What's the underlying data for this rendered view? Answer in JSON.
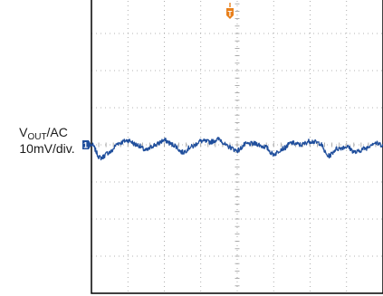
{
  "channel": {
    "label_main": "V",
    "label_sub": "OUT",
    "label_suffix": "/AC",
    "scale": "10mV/div."
  },
  "markers": {
    "trigger": "T",
    "channel_ref": "1"
  },
  "colors": {
    "trace": "#1f4e9c",
    "trigger": "#e8801c",
    "grid": "#9a9a9a",
    "frame": "#000000"
  },
  "chart_data": {
    "type": "line",
    "title": "",
    "xlabel": "",
    "ylabel": "VOUT/AC 10mV/div.",
    "grid": true,
    "x_divisions": 8,
    "y_divisions": 8,
    "xlim": [
      0,
      8
    ],
    "ylim": [
      -4,
      4
    ],
    "y_unit": "div",
    "series": [
      {
        "x": [
          0,
          0.25,
          0.5,
          0.75,
          1.0,
          1.25,
          1.5,
          1.75,
          2.0,
          2.25,
          2.5,
          2.75,
          3.0,
          3.25,
          3.5,
          3.75,
          4.0,
          4.25,
          4.5,
          4.75,
          5.0,
          5.25,
          5.5,
          5.75,
          6.0,
          6.25,
          6.5,
          6.75,
          7.0,
          7.25,
          7.5,
          7.75,
          8.0
        ],
        "values": [
          0.0,
          -0.35,
          -0.2,
          0.05,
          0.12,
          0.0,
          -0.15,
          0.0,
          0.12,
          0.0,
          -0.2,
          -0.05,
          0.1,
          0.08,
          0.15,
          -0.05,
          -0.15,
          0.02,
          0.03,
          -0.05,
          -0.25,
          -0.1,
          0.05,
          0.0,
          0.1,
          0.05,
          -0.3,
          -0.1,
          -0.05,
          -0.2,
          -0.1,
          0.05,
          0.0
        ]
      }
    ]
  }
}
